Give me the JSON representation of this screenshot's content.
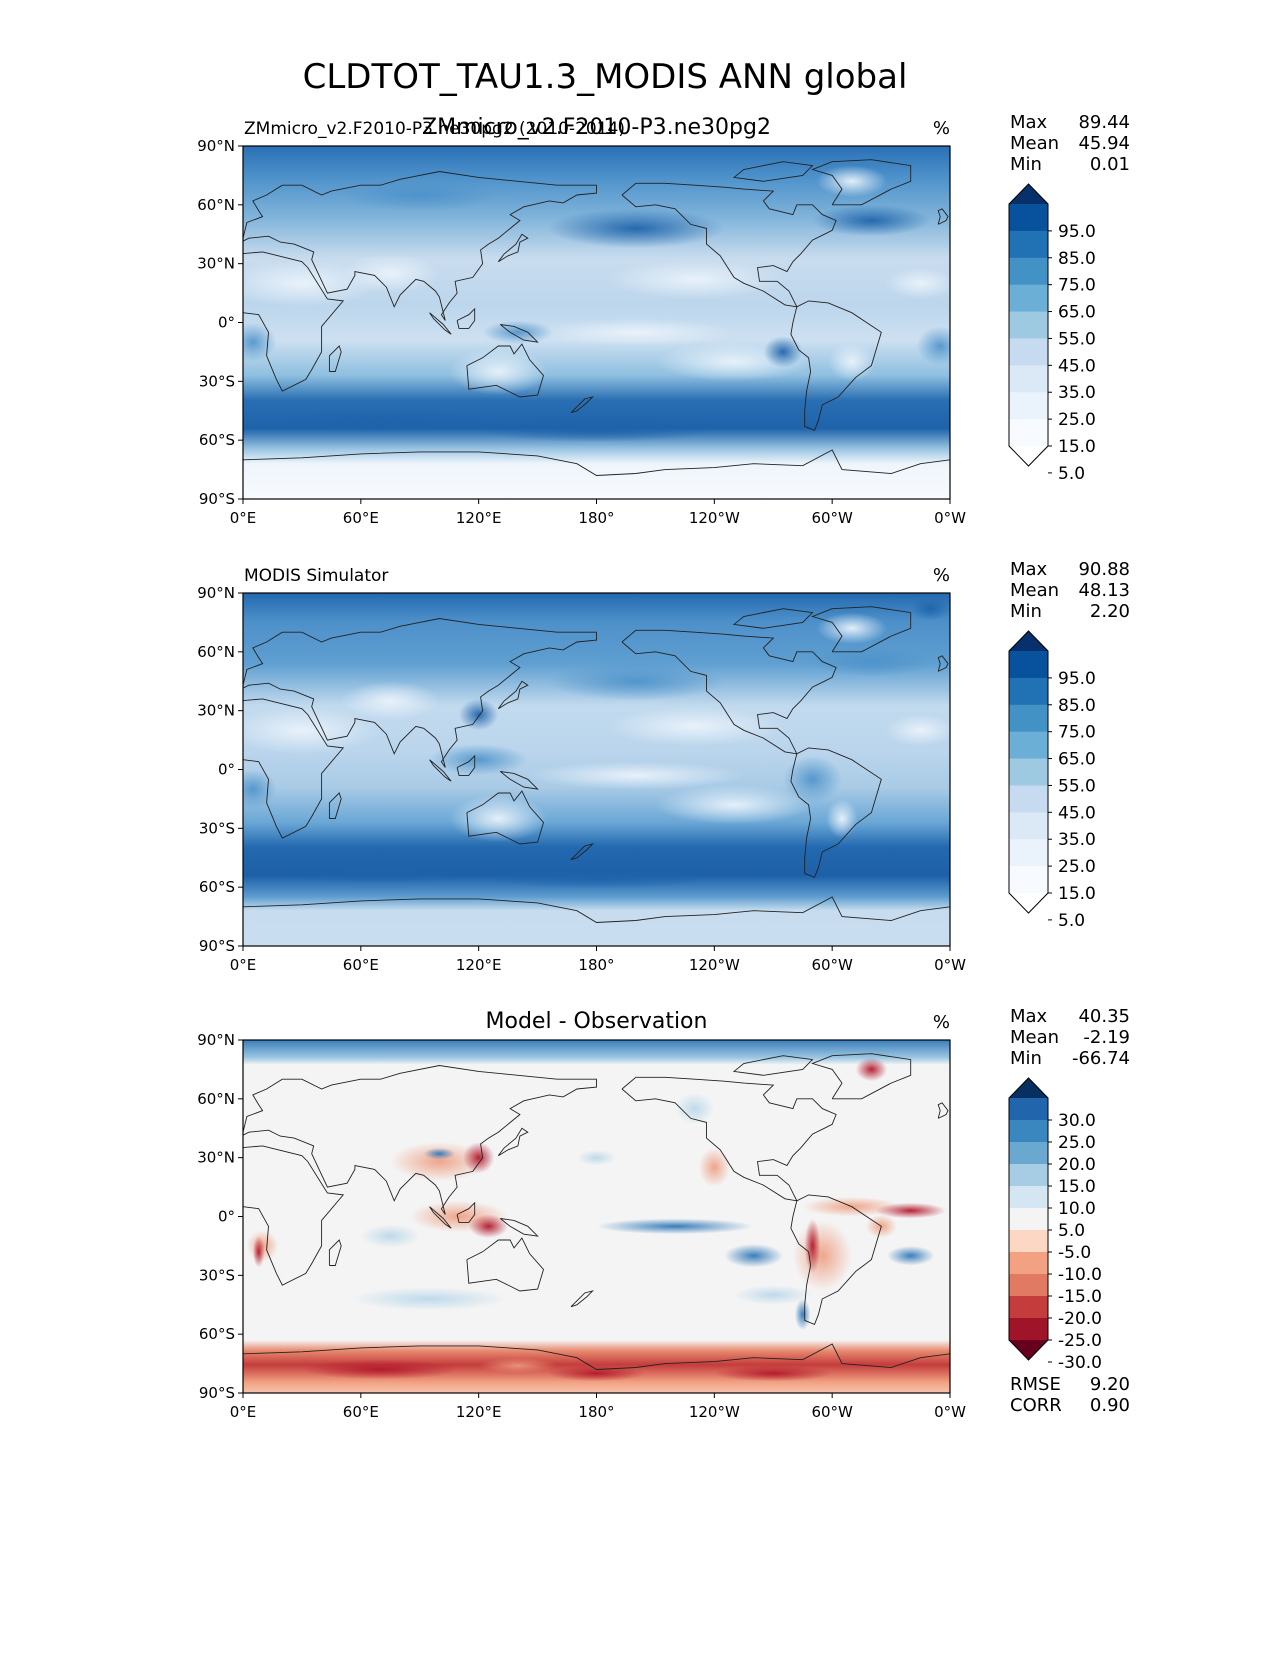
{
  "figure": {
    "title": "CLDTOT_TAU1.3_MODIS ANN global"
  },
  "chart_data": [
    {
      "type": "heatmap",
      "subtype": "global contour map",
      "left_title": "ZMmicro_v2.F2010-P3.ne30pg2 (2010-2014)",
      "center_title": "ZMmicro_v2.F2010-P3.ne30pg2",
      "units": "%",
      "x_ticks": [
        "0°E",
        "60°E",
        "120°E",
        "180°",
        "120°W",
        "60°W",
        "0°W"
      ],
      "y_ticks": [
        "90°N",
        "60°N",
        "30°N",
        "0°",
        "30°S",
        "60°S",
        "90°S"
      ],
      "xlim": [
        0,
        360
      ],
      "ylim": [
        -90,
        90
      ],
      "stats": [
        {
          "label": "Max",
          "value": "89.44"
        },
        {
          "label": "Mean",
          "value": "45.94"
        },
        {
          "label": "Min",
          "value": "0.01"
        }
      ],
      "colorbar": {
        "levels": [
          "95.0",
          "85.0",
          "75.0",
          "65.0",
          "55.0",
          "45.0",
          "35.0",
          "25.0",
          "15.0",
          "5.0"
        ],
        "extend": "both",
        "colors": [
          "#08306b",
          "#08519c",
          "#2171b5",
          "#4292c6",
          "#6baed6",
          "#9ecae1",
          "#c6dbef",
          "#dbe9f6",
          "#eaf2fb",
          "#f7fbff",
          "#ffffff"
        ]
      },
      "map_variant": "model"
    },
    {
      "type": "heatmap",
      "subtype": "global contour map",
      "left_title": "MODIS Simulator",
      "center_title": "",
      "units": "%",
      "x_ticks": [
        "0°E",
        "60°E",
        "120°E",
        "180°",
        "120°W",
        "60°W",
        "0°W"
      ],
      "y_ticks": [
        "90°N",
        "60°N",
        "30°N",
        "0°",
        "30°S",
        "60°S",
        "90°S"
      ],
      "xlim": [
        0,
        360
      ],
      "ylim": [
        -90,
        90
      ],
      "stats": [
        {
          "label": "Max",
          "value": "90.88"
        },
        {
          "label": "Mean",
          "value": "48.13"
        },
        {
          "label": "Min",
          "value": "2.20"
        }
      ],
      "colorbar": {
        "levels": [
          "95.0",
          "85.0",
          "75.0",
          "65.0",
          "55.0",
          "45.0",
          "35.0",
          "25.0",
          "15.0",
          "5.0"
        ],
        "extend": "both",
        "colors": [
          "#08306b",
          "#08519c",
          "#2171b5",
          "#4292c6",
          "#6baed6",
          "#9ecae1",
          "#c6dbef",
          "#dbe9f6",
          "#eaf2fb",
          "#f7fbff",
          "#ffffff"
        ]
      },
      "map_variant": "obs"
    },
    {
      "type": "heatmap",
      "subtype": "global difference map",
      "left_title": "",
      "center_title": "Model - Observation",
      "units": "%",
      "x_ticks": [
        "0°E",
        "60°E",
        "120°E",
        "180°",
        "120°W",
        "60°W",
        "0°W"
      ],
      "y_ticks": [
        "90°N",
        "60°N",
        "30°N",
        "0°",
        "30°S",
        "60°S",
        "90°S"
      ],
      "xlim": [
        0,
        360
      ],
      "ylim": [
        -90,
        90
      ],
      "stats": [
        {
          "label": "Max",
          "value": "40.35"
        },
        {
          "label": "Mean",
          "value": "-2.19"
        },
        {
          "label": "Min",
          "value": "-66.74"
        }
      ],
      "colorbar": {
        "levels": [
          "30.0",
          "25.0",
          "20.0",
          "15.0",
          "10.0",
          "5.0",
          "-5.0",
          "-10.0",
          "-15.0",
          "-20.0",
          "-25.0",
          "-30.0"
        ],
        "extend": "both",
        "colors": [
          "#053061",
          "#2166ac",
          "#3a87c0",
          "#6aa8d0",
          "#a6cde3",
          "#d4e6f1",
          "#f4f4f4",
          "#fbd7c4",
          "#f2a283",
          "#e07a62",
          "#c43c3c",
          "#a0142a",
          "#67001f"
        ]
      },
      "error_stats": [
        {
          "label": "RMSE",
          "value": "9.20"
        },
        {
          "label": "CORR",
          "value": "0.90"
        }
      ],
      "map_variant": "diff"
    }
  ]
}
